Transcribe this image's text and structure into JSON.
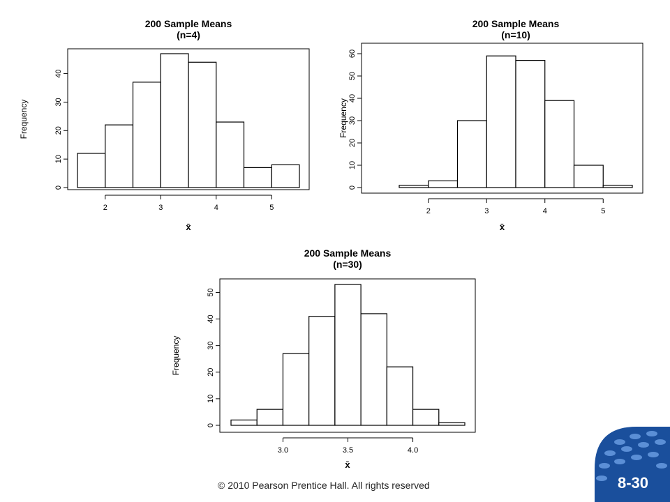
{
  "chart_data": [
    {
      "type": "bar",
      "title": "200 Sample Means",
      "subtitle": "(n=4)",
      "xlabel": "x̄",
      "ylabel": "Frequency",
      "bin_edges": [
        1.5,
        2.0,
        2.5,
        3.0,
        3.5,
        4.0,
        4.5,
        5.0,
        5.5
      ],
      "values": [
        12,
        22,
        37,
        47,
        44,
        23,
        7,
        8
      ],
      "xlim": [
        1.5,
        5.5
      ],
      "ylim": [
        0,
        47
      ],
      "xticks": [
        2,
        3,
        4,
        5
      ],
      "xtick_labels": [
        "2",
        "3",
        "4",
        "5"
      ],
      "yticks": [
        0,
        10,
        20,
        30,
        40
      ],
      "ytick_labels": [
        "0",
        "10",
        "20",
        "30",
        "40"
      ],
      "grid": false
    },
    {
      "type": "bar",
      "title": "200 Sample Means",
      "subtitle": "(n=10)",
      "xlabel": "x̄",
      "ylabel": "Frequency",
      "bin_edges": [
        1.5,
        2.0,
        2.5,
        3.0,
        3.5,
        4.0,
        4.5,
        5.0,
        5.5
      ],
      "values": [
        1,
        3,
        30,
        59,
        57,
        39,
        10,
        1
      ],
      "xlim": [
        1.5,
        5.5
      ],
      "ylim": [
        0,
        60
      ],
      "xticks": [
        2,
        3,
        4,
        5
      ],
      "xtick_labels": [
        "2",
        "3",
        "4",
        "5"
      ],
      "yticks": [
        0,
        10,
        20,
        30,
        40,
        50,
        60
      ],
      "ytick_labels": [
        "0",
        "10",
        "20",
        "30",
        "40",
        "50",
        "60"
      ],
      "grid": false
    },
    {
      "type": "bar",
      "title": "200 Sample Means",
      "subtitle": "(n=30)",
      "xlabel": "x̄",
      "ylabel": "Frequency",
      "bin_edges": [
        2.6,
        2.8,
        3.0,
        3.2,
        3.4,
        3.6,
        3.8,
        4.0,
        4.2,
        4.4
      ],
      "values": [
        2,
        6,
        27,
        41,
        53,
        42,
        22,
        6,
        1
      ],
      "xlim": [
        2.6,
        4.4
      ],
      "ylim": [
        0,
        53
      ],
      "xticks": [
        3.0,
        3.5,
        4.0
      ],
      "xtick_labels": [
        "3.0",
        "3.5",
        "4.0"
      ],
      "yticks": [
        0,
        10,
        20,
        30,
        40,
        50
      ],
      "ytick_labels": [
        "0",
        "10",
        "20",
        "30",
        "40",
        "50"
      ],
      "grid": false
    }
  ],
  "footer": {
    "copyright": "© 2010 Pearson Prentice Hall. All rights reserved",
    "slide_number": "8-30"
  },
  "colors": {
    "bar_fill": "#ffffff",
    "stroke": "#000000",
    "badge_dark": "#1a4f9c",
    "badge_light": "#5b8fd6"
  }
}
